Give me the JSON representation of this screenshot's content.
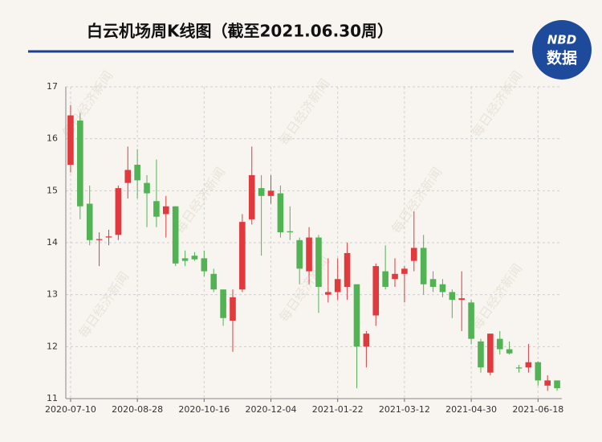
{
  "chart_data": {
    "type": "candlestick",
    "title": "白云机场周K线图（截至2021.06.30周）",
    "logo": {
      "top": "NBD",
      "bottom": "数据"
    },
    "watermark": "每日经济新闻",
    "categories": [
      "2020-07-10",
      null,
      null,
      null,
      null,
      null,
      null,
      "2020-08-28",
      null,
      null,
      null,
      null,
      null,
      null,
      "2020-10-16",
      null,
      null,
      null,
      null,
      null,
      null,
      "2020-12-04",
      null,
      null,
      null,
      null,
      null,
      null,
      "2021-01-22",
      null,
      null,
      null,
      null,
      null,
      null,
      "2021-03-12",
      null,
      null,
      null,
      null,
      null,
      null,
      "2021-04-30",
      null,
      null,
      null,
      null,
      null,
      null,
      "2021-06-18",
      null,
      null
    ],
    "series": {
      "open": [
        15.5,
        16.35,
        14.75,
        14.05,
        14.1,
        14.15,
        15.15,
        15.5,
        15.15,
        14.8,
        14.55,
        14.7,
        13.7,
        13.75,
        13.7,
        13.4,
        13.1,
        12.5,
        13.1,
        14.45,
        15.05,
        14.9,
        14.95,
        14.22,
        14.05,
        13.45,
        14.1,
        13.0,
        13.05,
        13.15,
        13.2,
        12.0,
        12.6,
        13.45,
        13.3,
        13.4,
        13.65,
        13.9,
        13.3,
        13.2,
        13.05,
        12.9,
        12.85,
        12.1,
        11.5,
        12.15,
        11.95,
        11.6,
        11.6,
        11.7,
        11.25,
        11.35
      ],
      "close": [
        16.45,
        14.7,
        14.05,
        14.07,
        14.12,
        15.05,
        15.4,
        15.2,
        14.95,
        14.5,
        14.7,
        13.6,
        13.65,
        13.68,
        13.45,
        13.1,
        12.55,
        12.95,
        14.4,
        15.3,
        14.9,
        15.0,
        14.2,
        14.2,
        13.5,
        14.1,
        13.15,
        13.05,
        13.3,
        13.8,
        12.0,
        12.25,
        13.55,
        13.15,
        13.4,
        13.5,
        13.9,
        13.2,
        13.15,
        13.05,
        12.9,
        12.93,
        12.15,
        11.6,
        12.25,
        11.95,
        11.87,
        11.58,
        11.7,
        11.35,
        11.35,
        11.2
      ],
      "high": [
        16.65,
        16.5,
        15.1,
        14.2,
        14.25,
        15.1,
        15.85,
        15.8,
        15.3,
        15.6,
        14.9,
        14.7,
        13.85,
        13.82,
        13.85,
        13.5,
        13.1,
        13.1,
        14.55,
        15.85,
        15.3,
        15.3,
        15.1,
        14.7,
        14.1,
        14.3,
        14.15,
        13.7,
        13.7,
        14.0,
        13.2,
        12.3,
        13.6,
        13.95,
        13.7,
        13.55,
        14.6,
        14.15,
        13.45,
        13.3,
        13.1,
        13.45,
        12.9,
        12.15,
        12.25,
        12.3,
        12.1,
        11.65,
        12.05,
        11.72,
        11.45,
        11.35
      ],
      "low": [
        15.35,
        14.45,
        13.95,
        13.55,
        13.95,
        14.05,
        14.85,
        14.85,
        14.3,
        14.3,
        14.1,
        13.55,
        13.55,
        13.65,
        13.35,
        13.05,
        12.4,
        11.9,
        13.05,
        14.35,
        13.75,
        14.75,
        14.1,
        14.05,
        13.2,
        13.2,
        12.65,
        12.85,
        12.9,
        12.9,
        11.2,
        11.6,
        12.4,
        13.1,
        13.15,
        12.85,
        13.45,
        13.0,
        13.05,
        12.95,
        12.55,
        12.3,
        12.05,
        11.5,
        11.45,
        11.85,
        11.85,
        11.5,
        11.5,
        11.25,
        11.15,
        11.15
      ]
    },
    "up_color": "#e0393e",
    "down_color": "#52b354",
    "ylim": [
      11,
      17
    ],
    "yticks": [
      11,
      12,
      13,
      14,
      15,
      16,
      17
    ],
    "grid": true
  }
}
